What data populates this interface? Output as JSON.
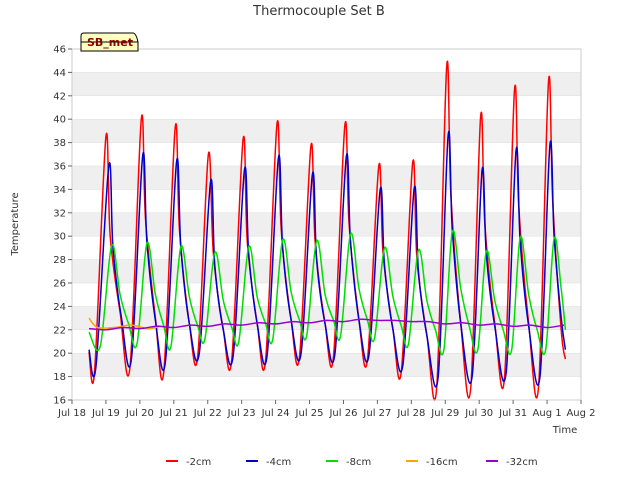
{
  "chart_data": {
    "type": "line",
    "title": "Thermocouple Set B",
    "xlabel": "Time",
    "ylabel": "Temperature",
    "ylim": [
      16,
      46
    ],
    "yticks": [
      16,
      18,
      20,
      22,
      24,
      26,
      28,
      30,
      32,
      34,
      36,
      38,
      40,
      42,
      44,
      46
    ],
    "xlim": [
      "2024-07-18",
      "2024-08-02"
    ],
    "xticks": [
      "Jul 18",
      "Jul 19",
      "Jul 20",
      "Jul 21",
      "Jul 22",
      "Jul 23",
      "Jul 24",
      "Jul 25",
      "Jul 26",
      "Jul 27",
      "Jul 28",
      "Jul 29",
      "Jul 30",
      "Jul 31",
      "Aug 1",
      "Aug 2"
    ],
    "grid": "horizontal bands",
    "legend_position": "bottom",
    "badge": "SB_met",
    "series": [
      {
        "name": "-2cm",
        "color": "#ff0000",
        "points": [
          [
            "2024-07-18T12:00",
            20.1
          ],
          [
            "2024-07-18T16:00",
            18.5
          ],
          [
            "2024-07-19T00:00",
            38.5
          ],
          [
            "2024-07-19T03:00",
            30.0
          ],
          [
            "2024-07-19T10:00",
            23.5
          ],
          [
            "2024-07-19T17:00",
            18.8
          ],
          [
            "2024-07-20T01:00",
            40.0
          ],
          [
            "2024-07-20T04:00",
            31.5
          ],
          [
            "2024-07-20T11:00",
            23.0
          ],
          [
            "2024-07-20T17:00",
            18.5
          ],
          [
            "2024-07-21T01:00",
            39.3
          ],
          [
            "2024-07-21T04:00",
            30.5
          ],
          [
            "2024-07-21T11:00",
            22.5
          ],
          [
            "2024-07-21T17:00",
            19.8
          ],
          [
            "2024-07-22T00:30",
            37.0
          ],
          [
            "2024-07-22T04:00",
            28.5
          ],
          [
            "2024-07-22T11:00",
            22.0
          ],
          [
            "2024-07-22T17:00",
            19.5
          ],
          [
            "2024-07-23T01:00",
            38.3
          ],
          [
            "2024-07-23T04:00",
            29.5
          ],
          [
            "2024-07-23T11:00",
            22.5
          ],
          [
            "2024-07-23T17:00",
            19.5
          ],
          [
            "2024-07-24T01:00",
            39.6
          ],
          [
            "2024-07-24T04:00",
            30.5
          ],
          [
            "2024-07-24T11:00",
            22.8
          ],
          [
            "2024-07-24T17:00",
            19.8
          ],
          [
            "2024-07-25T01:00",
            37.7
          ],
          [
            "2024-07-25T04:00",
            29.5
          ],
          [
            "2024-07-25T11:00",
            22.5
          ],
          [
            "2024-07-25T17:00",
            19.8
          ],
          [
            "2024-07-26T01:00",
            39.5
          ],
          [
            "2024-07-26T04:00",
            31.0
          ],
          [
            "2024-07-26T11:00",
            22.8
          ],
          [
            "2024-07-26T17:00",
            19.5
          ],
          [
            "2024-07-27T01:00",
            36.0
          ],
          [
            "2024-07-27T04:00",
            28.5
          ],
          [
            "2024-07-27T11:00",
            22.0
          ],
          [
            "2024-07-27T17:00",
            18.5
          ],
          [
            "2024-07-28T01:00",
            36.3
          ],
          [
            "2024-07-28T04:00",
            28.0
          ],
          [
            "2024-07-28T11:00",
            21.5
          ],
          [
            "2024-07-28T18:00",
            17.2
          ],
          [
            "2024-07-29T01:00",
            44.5
          ],
          [
            "2024-07-29T04:00",
            33.5
          ],
          [
            "2024-07-29T11:00",
            22.5
          ],
          [
            "2024-07-29T18:00",
            17.0
          ],
          [
            "2024-07-30T01:00",
            40.2
          ],
          [
            "2024-07-30T04:00",
            31.0
          ],
          [
            "2024-07-30T11:00",
            22.5
          ],
          [
            "2024-07-30T18:00",
            18.0
          ],
          [
            "2024-07-31T01:00",
            42.5
          ],
          [
            "2024-07-31T04:00",
            32.5
          ],
          [
            "2024-07-31T11:00",
            22.5
          ],
          [
            "2024-07-31T18:00",
            17.2
          ],
          [
            "2024-08-01T01:00",
            43.2
          ],
          [
            "2024-08-01T04:00",
            33.0
          ],
          [
            "2024-08-01T10:00",
            22.0
          ],
          [
            "2024-08-01T13:00",
            19.5
          ]
        ]
      },
      {
        "name": "-4cm",
        "color": "#0000cc",
        "points": [
          [
            "2024-07-18T12:00",
            20.3
          ],
          [
            "2024-07-18T17:00",
            18.9
          ],
          [
            "2024-07-19T02:00",
            36.0
          ],
          [
            "2024-07-19T05:00",
            29.0
          ],
          [
            "2024-07-19T11:00",
            23.0
          ],
          [
            "2024-07-19T18:00",
            19.5
          ],
          [
            "2024-07-20T02:00",
            36.9
          ],
          [
            "2024-07-20T05:00",
            29.5
          ],
          [
            "2024-07-20T11:00",
            22.8
          ],
          [
            "2024-07-20T18:00",
            19.2
          ],
          [
            "2024-07-21T02:00",
            36.4
          ],
          [
            "2024-07-21T05:00",
            29.0
          ],
          [
            "2024-07-21T11:00",
            22.5
          ],
          [
            "2024-07-21T18:00",
            20.0
          ],
          [
            "2024-07-22T02:00",
            34.7
          ],
          [
            "2024-07-22T05:00",
            27.5
          ],
          [
            "2024-07-22T11:00",
            22.0
          ],
          [
            "2024-07-22T18:00",
            19.8
          ],
          [
            "2024-07-23T02:00",
            35.7
          ],
          [
            "2024-07-23T05:00",
            28.5
          ],
          [
            "2024-07-23T11:00",
            22.5
          ],
          [
            "2024-07-23T18:00",
            19.8
          ],
          [
            "2024-07-24T02:00",
            36.7
          ],
          [
            "2024-07-24T05:00",
            29.0
          ],
          [
            "2024-07-24T11:00",
            22.8
          ],
          [
            "2024-07-24T18:00",
            20.0
          ],
          [
            "2024-07-25T02:00",
            35.3
          ],
          [
            "2024-07-25T05:00",
            28.0
          ],
          [
            "2024-07-25T11:00",
            22.5
          ],
          [
            "2024-07-25T18:00",
            20.0
          ],
          [
            "2024-07-26T02:00",
            36.8
          ],
          [
            "2024-07-26T05:00",
            29.5
          ],
          [
            "2024-07-26T11:00",
            22.8
          ],
          [
            "2024-07-26T18:00",
            19.8
          ],
          [
            "2024-07-27T02:00",
            34.0
          ],
          [
            "2024-07-27T05:00",
            27.5
          ],
          [
            "2024-07-27T11:00",
            22.0
          ],
          [
            "2024-07-27T18:00",
            19.0
          ],
          [
            "2024-07-28T02:00",
            34.1
          ],
          [
            "2024-07-28T05:00",
            27.0
          ],
          [
            "2024-07-28T11:00",
            21.5
          ],
          [
            "2024-07-28T19:00",
            18.0
          ],
          [
            "2024-07-29T02:00",
            38.6
          ],
          [
            "2024-07-29T05:00",
            30.5
          ],
          [
            "2024-07-29T11:00",
            22.5
          ],
          [
            "2024-07-29T19:00",
            18.0
          ],
          [
            "2024-07-30T02:00",
            35.6
          ],
          [
            "2024-07-30T05:00",
            28.5
          ],
          [
            "2024-07-30T11:00",
            22.3
          ],
          [
            "2024-07-30T19:00",
            18.3
          ],
          [
            "2024-07-31T02:00",
            37.3
          ],
          [
            "2024-07-31T05:00",
            29.5
          ],
          [
            "2024-07-31T11:00",
            22.3
          ],
          [
            "2024-07-31T19:00",
            18.0
          ],
          [
            "2024-08-01T02:00",
            37.8
          ],
          [
            "2024-08-01T05:00",
            30.0
          ],
          [
            "2024-08-01T10:00",
            23.0
          ],
          [
            "2024-08-01T13:00",
            20.3
          ]
        ]
      },
      {
        "name": "-8cm",
        "color": "#00dd00",
        "points": [
          [
            "2024-07-18T12:00",
            21.8
          ],
          [
            "2024-07-18T20:00",
            20.6
          ],
          [
            "2024-07-19T04:00",
            29.2
          ],
          [
            "2024-07-19T10:00",
            25.0
          ],
          [
            "2024-07-19T16:00",
            22.5
          ],
          [
            "2024-07-19T22:00",
            20.8
          ],
          [
            "2024-07-20T05:00",
            29.4
          ],
          [
            "2024-07-20T11:00",
            25.0
          ],
          [
            "2024-07-20T17:00",
            22.3
          ],
          [
            "2024-07-20T22:00",
            20.6
          ],
          [
            "2024-07-21T05:00",
            29.1
          ],
          [
            "2024-07-21T11:00",
            24.8
          ],
          [
            "2024-07-21T17:00",
            22.3
          ],
          [
            "2024-07-21T22:00",
            21.2
          ],
          [
            "2024-07-22T05:00",
            28.6
          ],
          [
            "2024-07-22T11:00",
            24.5
          ],
          [
            "2024-07-22T17:00",
            22.2
          ],
          [
            "2024-07-22T22:00",
            21.0
          ],
          [
            "2024-07-23T05:00",
            29.1
          ],
          [
            "2024-07-23T11:00",
            24.8
          ],
          [
            "2024-07-23T17:00",
            22.5
          ],
          [
            "2024-07-23T22:00",
            21.2
          ],
          [
            "2024-07-24T05:00",
            29.7
          ],
          [
            "2024-07-24T11:00",
            25.2
          ],
          [
            "2024-07-24T17:00",
            22.8
          ],
          [
            "2024-07-24T22:00",
            21.5
          ],
          [
            "2024-07-25T05:00",
            29.6
          ],
          [
            "2024-07-25T11:00",
            25.0
          ],
          [
            "2024-07-25T17:00",
            22.8
          ],
          [
            "2024-07-25T22:00",
            21.5
          ],
          [
            "2024-07-26T05:00",
            30.2
          ],
          [
            "2024-07-26T11:00",
            25.5
          ],
          [
            "2024-07-26T17:00",
            22.8
          ],
          [
            "2024-07-26T22:00",
            21.3
          ],
          [
            "2024-07-27T05:00",
            29.0
          ],
          [
            "2024-07-27T11:00",
            24.8
          ],
          [
            "2024-07-27T17:00",
            22.3
          ],
          [
            "2024-07-27T22:00",
            20.8
          ],
          [
            "2024-07-28T05:00",
            28.8
          ],
          [
            "2024-07-28T11:00",
            24.5
          ],
          [
            "2024-07-28T17:00",
            22.0
          ],
          [
            "2024-07-28T23:00",
            20.3
          ],
          [
            "2024-07-29T05:00",
            30.4
          ],
          [
            "2024-07-29T11:00",
            25.5
          ],
          [
            "2024-07-29T17:00",
            22.3
          ],
          [
            "2024-07-29T23:00",
            20.3
          ],
          [
            "2024-07-30T05:00",
            28.7
          ],
          [
            "2024-07-30T11:00",
            24.5
          ],
          [
            "2024-07-30T17:00",
            22.0
          ],
          [
            "2024-07-30T23:00",
            20.3
          ],
          [
            "2024-07-31T05:00",
            29.9
          ],
          [
            "2024-07-31T11:00",
            25.0
          ],
          [
            "2024-07-31T17:00",
            22.0
          ],
          [
            "2024-07-31T23:00",
            20.3
          ],
          [
            "2024-08-01T05:00",
            29.8
          ],
          [
            "2024-08-01T10:00",
            25.5
          ],
          [
            "2024-08-01T13:00",
            22.0
          ]
        ]
      },
      {
        "name": "-16cm",
        "color": "#ffa500",
        "points": [
          [
            "2024-07-18T12:00",
            23.0
          ],
          [
            "2024-07-18T18:00",
            22.2
          ],
          [
            "2024-07-19T06:00",
            22.2
          ],
          [
            "2024-07-19T18:00",
            22.4
          ],
          [
            "2024-07-20T06:00",
            22.1
          ],
          [
            "2024-07-20T14:00",
            22.3
          ]
        ]
      },
      {
        "name": "-32cm",
        "color": "#9900cc",
        "points": [
          [
            "2024-07-18T12:00",
            22.1
          ],
          [
            "2024-07-19T00:00",
            22.0
          ],
          [
            "2024-07-19T12:00",
            22.2
          ],
          [
            "2024-07-20T00:00",
            22.1
          ],
          [
            "2024-07-20T12:00",
            22.3
          ],
          [
            "2024-07-21T00:00",
            22.2
          ],
          [
            "2024-07-21T12:00",
            22.4
          ],
          [
            "2024-07-22T00:00",
            22.3
          ],
          [
            "2024-07-22T12:00",
            22.5
          ],
          [
            "2024-07-23T00:00",
            22.4
          ],
          [
            "2024-07-23T12:00",
            22.6
          ],
          [
            "2024-07-24T00:00",
            22.5
          ],
          [
            "2024-07-24T12:00",
            22.7
          ],
          [
            "2024-07-25T00:00",
            22.6
          ],
          [
            "2024-07-25T12:00",
            22.8
          ],
          [
            "2024-07-26T00:00",
            22.7
          ],
          [
            "2024-07-26T12:00",
            22.9
          ],
          [
            "2024-07-27T00:00",
            22.8
          ],
          [
            "2024-07-27T12:00",
            22.8
          ],
          [
            "2024-07-28T00:00",
            22.7
          ],
          [
            "2024-07-28T12:00",
            22.7
          ],
          [
            "2024-07-29T00:00",
            22.5
          ],
          [
            "2024-07-29T12:00",
            22.6
          ],
          [
            "2024-07-30T00:00",
            22.4
          ],
          [
            "2024-07-30T12:00",
            22.5
          ],
          [
            "2024-07-31T00:00",
            22.3
          ],
          [
            "2024-07-31T12:00",
            22.4
          ],
          [
            "2024-08-01T00:00",
            22.2
          ],
          [
            "2024-08-01T12:00",
            22.4
          ]
        ]
      }
    ]
  }
}
